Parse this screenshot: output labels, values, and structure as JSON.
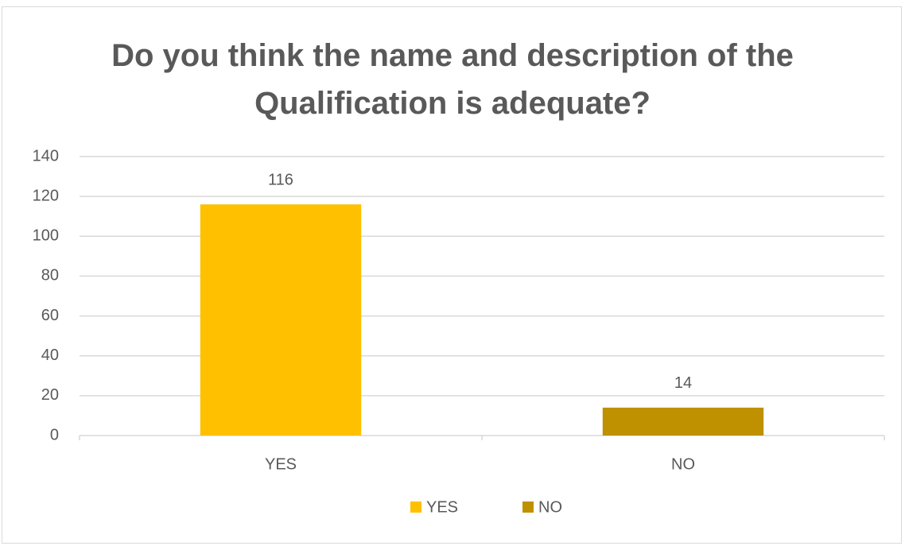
{
  "chart_data": {
    "type": "bar",
    "title": "Do you think the name and description of the Qualification is adequate?",
    "categories": [
      "YES",
      "NO"
    ],
    "values": [
      116,
      14
    ],
    "colors": [
      "#ffc000",
      "#bf9000"
    ],
    "ylim": [
      0,
      140
    ],
    "yticks": [
      0,
      20,
      40,
      60,
      80,
      100,
      120,
      140
    ],
    "grid": true,
    "legend": "bottom"
  }
}
